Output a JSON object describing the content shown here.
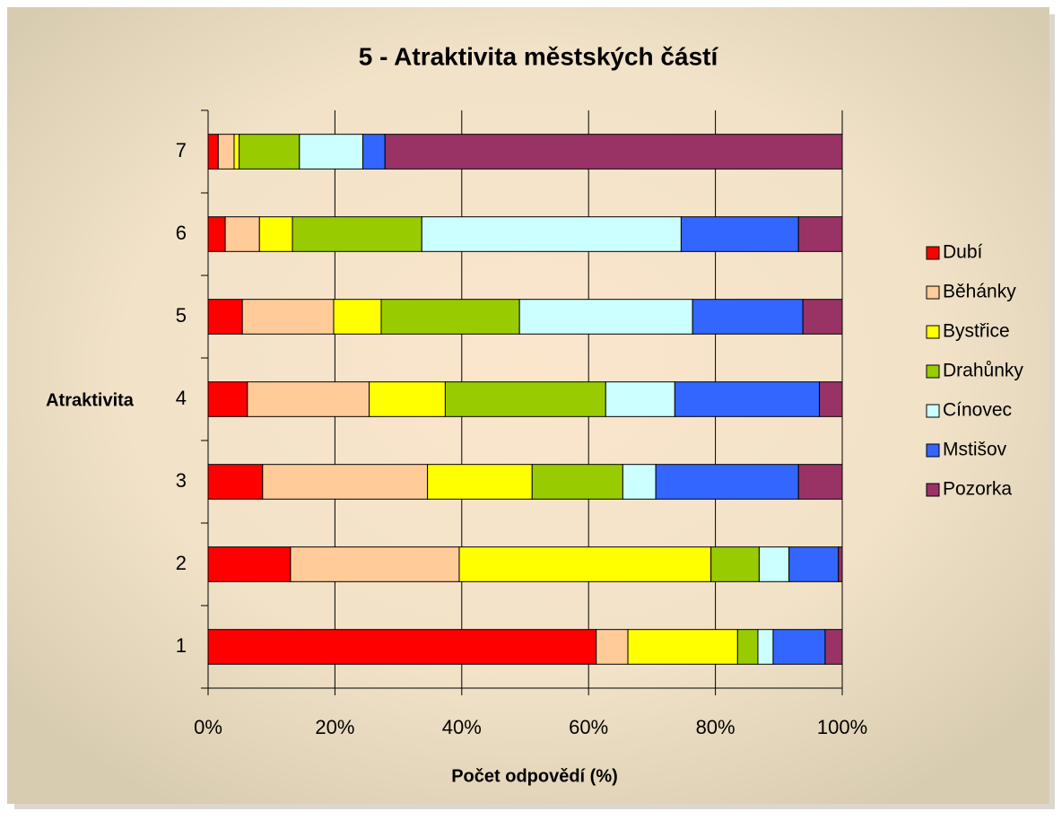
{
  "chart_data": {
    "type": "stacked-bar-horizontal",
    "title": "5 - Atraktivita městských částí",
    "xlabel": "Počet odpovědí (%)",
    "ylabel": "Atraktivita",
    "categories": [
      "1",
      "2",
      "3",
      "4",
      "5",
      "6",
      "7"
    ],
    "series": [
      {
        "name": "Dubí",
        "color": "#ff0000",
        "values": [
          61.2,
          13.0,
          8.6,
          6.2,
          5.4,
          2.7,
          1.6
        ]
      },
      {
        "name": "Běhánky",
        "color": "#ffcc99",
        "values": [
          5.0,
          26.6,
          26.0,
          19.2,
          14.4,
          5.4,
          2.5
        ]
      },
      {
        "name": "Bystřice",
        "color": "#ffff00",
        "values": [
          17.3,
          39.7,
          16.5,
          12.0,
          7.5,
          5.2,
          0.8
        ]
      },
      {
        "name": "Drahůnky",
        "color": "#99cc00",
        "values": [
          3.2,
          7.6,
          14.3,
          25.3,
          21.8,
          20.4,
          9.5
        ]
      },
      {
        "name": "Cínovec",
        "color": "#ccffff",
        "values": [
          2.4,
          4.7,
          5.2,
          10.9,
          27.3,
          40.9,
          10.0
        ]
      },
      {
        "name": "Mstišov",
        "color": "#3366ff",
        "values": [
          8.2,
          7.8,
          22.5,
          22.8,
          17.4,
          18.5,
          3.5
        ]
      },
      {
        "name": "Pozorka",
        "color": "#993366",
        "values": [
          2.7,
          0.6,
          6.9,
          3.6,
          6.2,
          6.9,
          72.1
        ]
      }
    ],
    "xlim": [
      0,
      100
    ],
    "xticks": [
      {
        "value": 0,
        "label": "0%"
      },
      {
        "value": 20,
        "label": "20%"
      },
      {
        "value": 40,
        "label": "40%"
      },
      {
        "value": 60,
        "label": "60%"
      },
      {
        "value": 80,
        "label": "80%"
      },
      {
        "value": 100,
        "label": "100%"
      }
    ],
    "grid": true,
    "legend": "right"
  }
}
